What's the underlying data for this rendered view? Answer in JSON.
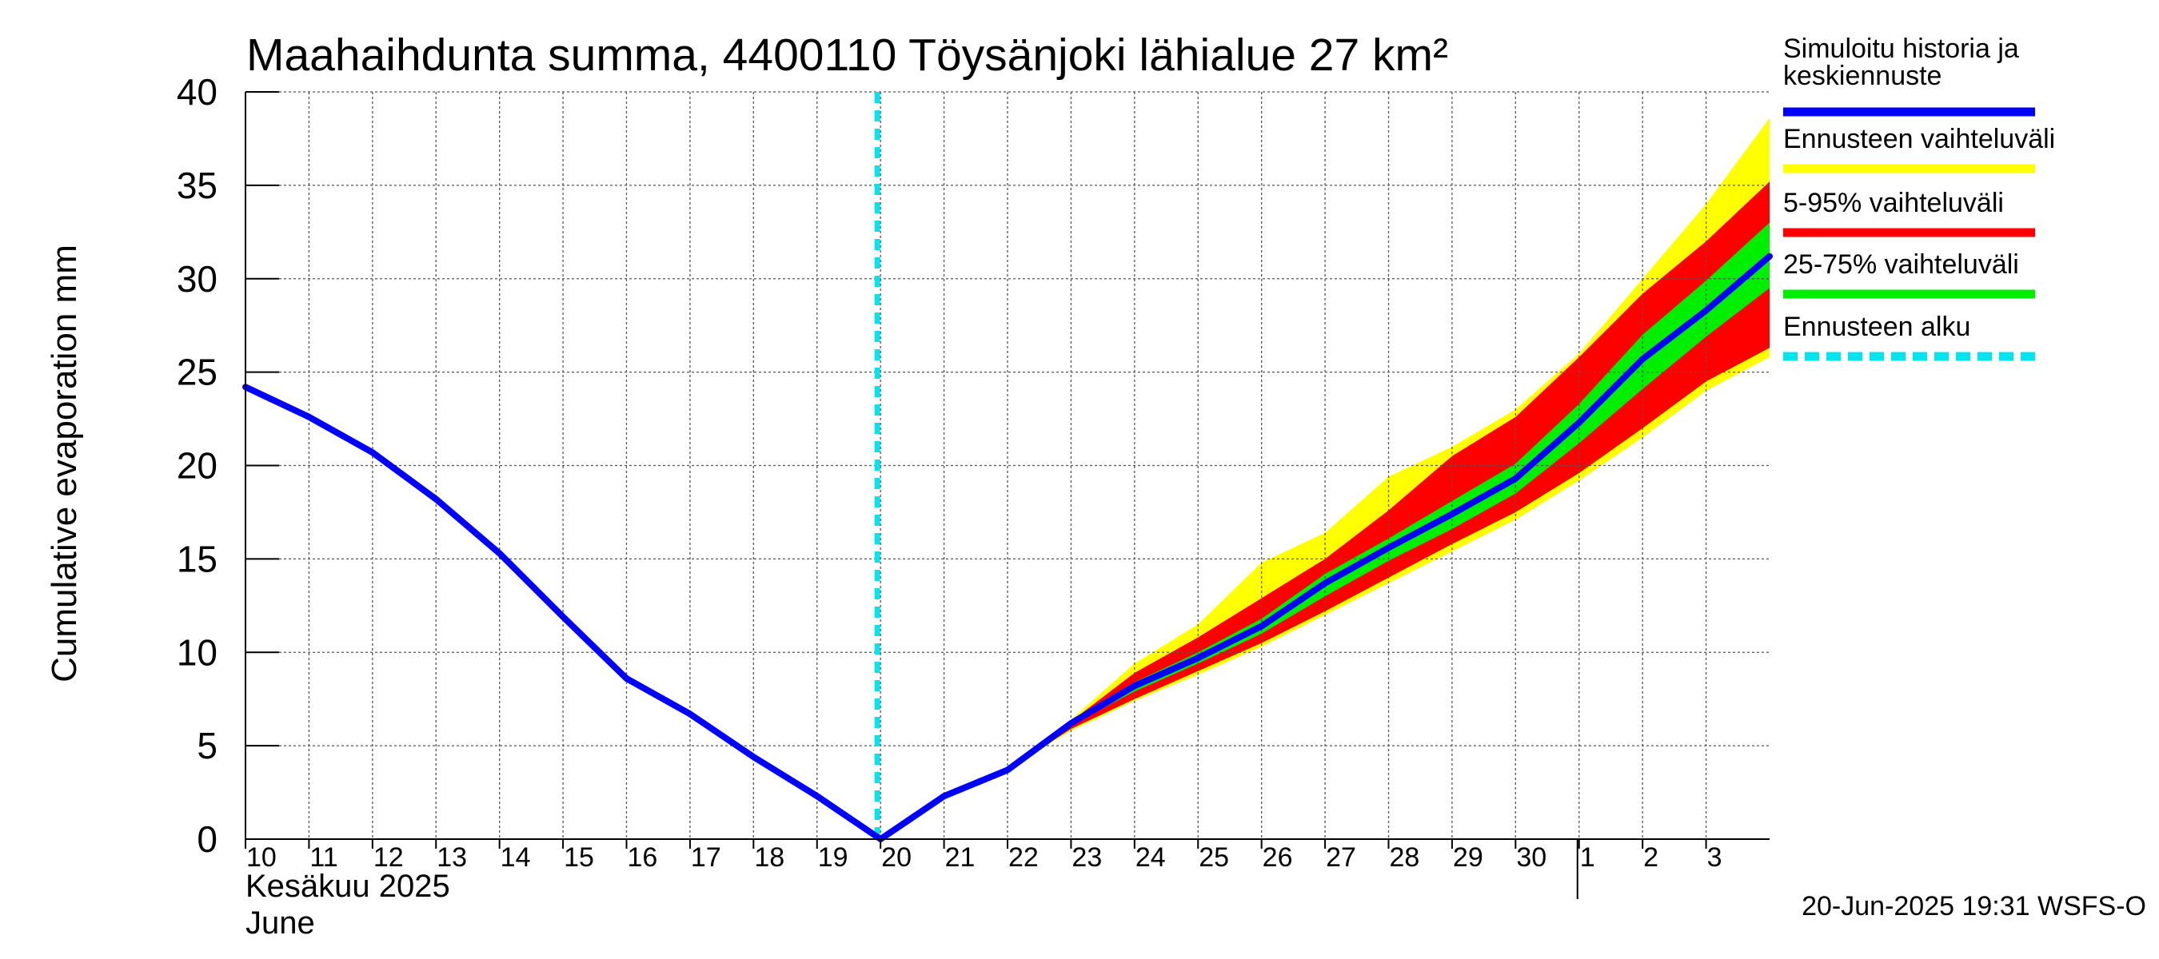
{
  "chart_data": {
    "type": "area",
    "title": "Maahaihdunta summa, 4400110 Töysänjoki lähialue 27 km²",
    "ylabel": "Cumulative evaporation   mm",
    "xlabel_line1": "Kesäkuu   2025",
    "xlabel_line2": "June",
    "ylim": [
      0,
      40
    ],
    "yticks": [
      0,
      5,
      10,
      15,
      20,
      25,
      30,
      35,
      40
    ],
    "x_start_day": 10,
    "x_end_day": 34,
    "xticks": [
      {
        "day": 10,
        "label": "10"
      },
      {
        "day": 11,
        "label": "11"
      },
      {
        "day": 12,
        "label": "12"
      },
      {
        "day": 13,
        "label": "13"
      },
      {
        "day": 14,
        "label": "14"
      },
      {
        "day": 15,
        "label": "15"
      },
      {
        "day": 16,
        "label": "16"
      },
      {
        "day": 17,
        "label": "17"
      },
      {
        "day": 18,
        "label": "18"
      },
      {
        "day": 19,
        "label": "19"
      },
      {
        "day": 20,
        "label": "20"
      },
      {
        "day": 21,
        "label": "21"
      },
      {
        "day": 22,
        "label": "22"
      },
      {
        "day": 23,
        "label": "23"
      },
      {
        "day": 24,
        "label": "24"
      },
      {
        "day": 25,
        "label": "25"
      },
      {
        "day": 26,
        "label": "26"
      },
      {
        "day": 27,
        "label": "27"
      },
      {
        "day": 28,
        "label": "28"
      },
      {
        "day": 29,
        "label": "29"
      },
      {
        "day": 30,
        "label": "30"
      },
      {
        "day": 31,
        "label": "1"
      },
      {
        "day": 32,
        "label": "2"
      },
      {
        "day": 33,
        "label": "3"
      }
    ],
    "month_separator_day": 31,
    "forecast_start_day": 20,
    "median": {
      "x": [
        10,
        11,
        12,
        13,
        14,
        15,
        16,
        17,
        18,
        19,
        20,
        21,
        22,
        23,
        24,
        25,
        26,
        27,
        28,
        29,
        30,
        31,
        32,
        33,
        34
      ],
      "y": [
        24.2,
        22.6,
        20.7,
        18.2,
        15.3,
        11.9,
        8.6,
        6.7,
        4.4,
        2.3,
        0.0,
        2.3,
        3.7,
        6.2,
        8.2,
        9.7,
        11.4,
        13.7,
        15.6,
        17.4,
        19.3,
        22.3,
        25.7,
        28.3,
        31.2
      ]
    },
    "bands": [
      {
        "name": "Ennusteen vaihteluväli",
        "color": "#ffff00",
        "x": [
          22,
          23,
          24,
          25,
          26,
          27,
          28,
          29,
          30,
          31,
          32,
          33,
          34
        ],
        "low": [
          3.7,
          5.8,
          7.4,
          8.8,
          10.3,
          12.0,
          13.7,
          15.4,
          17.1,
          19.2,
          21.5,
          24.0,
          25.8
        ],
        "high": [
          3.7,
          6.4,
          9.4,
          11.5,
          14.8,
          16.4,
          19.4,
          21.0,
          23.0,
          26.0,
          30.0,
          34.0,
          38.6
        ]
      },
      {
        "name": "5-95% vaihteluväli",
        "color": "#ff0000",
        "x": [
          22,
          23,
          24,
          25,
          26,
          27,
          28,
          29,
          30,
          31,
          32,
          33,
          34
        ],
        "low": [
          3.7,
          5.9,
          7.5,
          9.0,
          10.5,
          12.2,
          14.0,
          15.8,
          17.5,
          19.6,
          22.0,
          24.5,
          26.3
        ],
        "high": [
          3.7,
          6.3,
          8.9,
          10.8,
          12.9,
          15.0,
          17.6,
          20.5,
          22.6,
          25.8,
          29.2,
          32.0,
          35.2
        ]
      },
      {
        "name": "25-75% vaihteluväli",
        "color": "#00ee00",
        "x": [
          22,
          23,
          24,
          25,
          26,
          27,
          28,
          29,
          30,
          31,
          32,
          33,
          34
        ],
        "low": [
          3.7,
          6.1,
          7.9,
          9.4,
          11.0,
          13.0,
          14.9,
          16.6,
          18.5,
          21.2,
          24.1,
          26.9,
          29.5
        ],
        "high": [
          3.7,
          6.2,
          8.4,
          10.0,
          11.8,
          14.2,
          16.1,
          18.1,
          20.1,
          23.3,
          27.0,
          29.9,
          33.0
        ]
      }
    ],
    "legend": [
      {
        "label_line1": "Simuloitu historia ja",
        "label_line2": "keskiennuste",
        "color": "#0000ff",
        "style": "solid"
      },
      {
        "label_line1": "Ennusteen vaihteluväli",
        "label_line2": "",
        "color": "#ffff00",
        "style": "solid"
      },
      {
        "label_line1": "5-95% vaihteluväli",
        "label_line2": "",
        "color": "#ff0000",
        "style": "solid"
      },
      {
        "label_line1": "25-75% vaihteluväli",
        "label_line2": "",
        "color": "#00ee00",
        "style": "solid"
      },
      {
        "label_line1": "Ennusteen alku",
        "label_line2": "",
        "color": "#00e5ee",
        "style": "dashed"
      }
    ],
    "legend_position": "right",
    "timestamp": "20-Jun-2025 19:31 WSFS-O"
  }
}
